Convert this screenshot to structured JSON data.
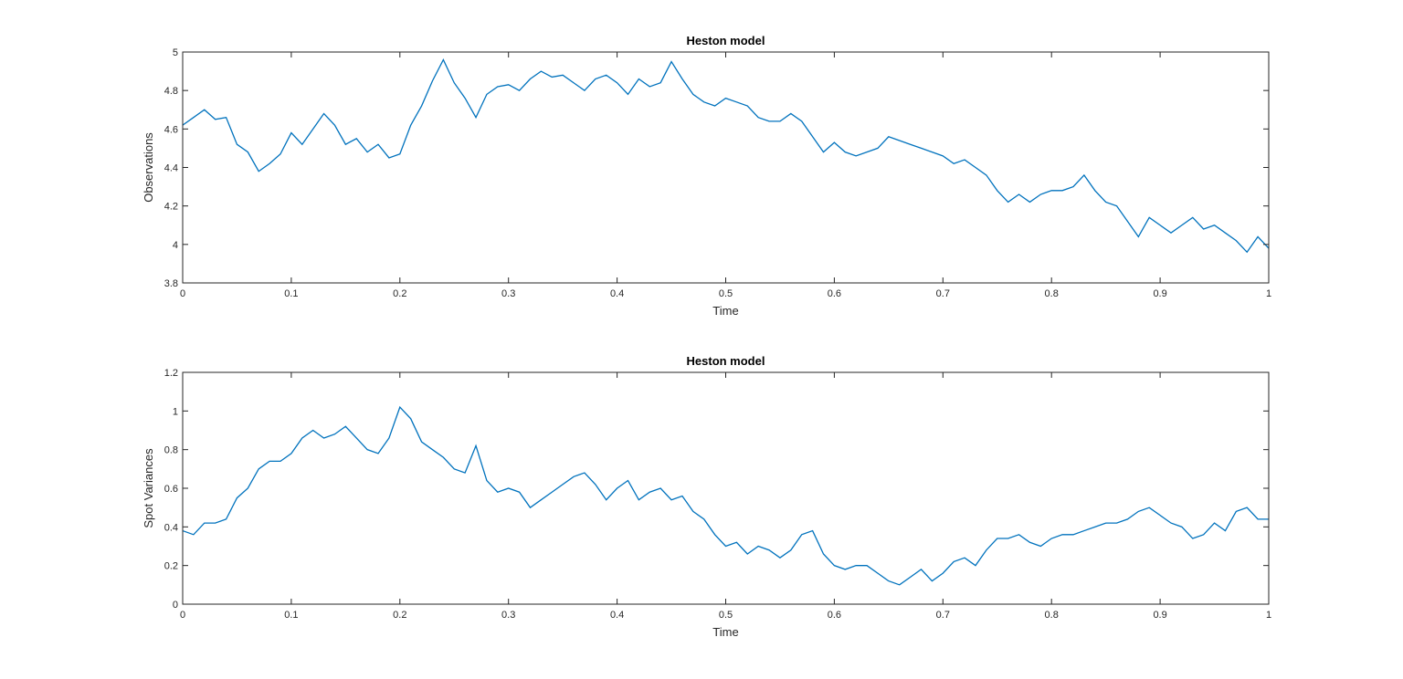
{
  "chart_data": [
    {
      "type": "line",
      "title": "Heston model",
      "xlabel": "Time",
      "ylabel": "Observations",
      "color": "#0072bd",
      "x": [
        0,
        0.01,
        0.02,
        0.03,
        0.04,
        0.05,
        0.06,
        0.07,
        0.08,
        0.09,
        0.1,
        0.11,
        0.12,
        0.13,
        0.14,
        0.15,
        0.16,
        0.17,
        0.18,
        0.19,
        0.2,
        0.21,
        0.22,
        0.23,
        0.24,
        0.25,
        0.26,
        0.27,
        0.28,
        0.29,
        0.3,
        0.31,
        0.32,
        0.33,
        0.34,
        0.35,
        0.36,
        0.37,
        0.38,
        0.39,
        0.4,
        0.41,
        0.42,
        0.43,
        0.44,
        0.45,
        0.46,
        0.47,
        0.48,
        0.49,
        0.5,
        0.51,
        0.52,
        0.53,
        0.54,
        0.55,
        0.56,
        0.57,
        0.58,
        0.59,
        0.6,
        0.61,
        0.62,
        0.63,
        0.64,
        0.65,
        0.66,
        0.67,
        0.68,
        0.69,
        0.7,
        0.71,
        0.72,
        0.73,
        0.74,
        0.75,
        0.76,
        0.77,
        0.78,
        0.79,
        0.8,
        0.81,
        0.82,
        0.83,
        0.84,
        0.85,
        0.86,
        0.87,
        0.88,
        0.89,
        0.9,
        0.91,
        0.92,
        0.93,
        0.94,
        0.95,
        0.96,
        0.97,
        0.98,
        0.99,
        1
      ],
      "values": [
        4.62,
        4.66,
        4.7,
        4.65,
        4.66,
        4.52,
        4.48,
        4.38,
        4.42,
        4.47,
        4.58,
        4.52,
        4.6,
        4.68,
        4.62,
        4.52,
        4.55,
        4.48,
        4.52,
        4.45,
        4.47,
        4.62,
        4.72,
        4.85,
        4.96,
        4.84,
        4.76,
        4.66,
        4.78,
        4.82,
        4.83,
        4.8,
        4.86,
        4.9,
        4.87,
        4.88,
        4.84,
        4.8,
        4.86,
        4.88,
        4.84,
        4.78,
        4.86,
        4.82,
        4.84,
        4.95,
        4.86,
        4.78,
        4.74,
        4.72,
        4.76,
        4.74,
        4.72,
        4.66,
        4.64,
        4.64,
        4.68,
        4.64,
        4.56,
        4.48,
        4.53,
        4.48,
        4.46,
        4.48,
        4.5,
        4.56,
        4.54,
        4.52,
        4.5,
        4.48,
        4.46,
        4.42,
        4.44,
        4.4,
        4.36,
        4.28,
        4.22,
        4.26,
        4.22,
        4.26,
        4.28,
        4.28,
        4.3,
        4.36,
        4.28,
        4.22,
        4.2,
        4.12,
        4.04,
        4.14,
        4.1,
        4.06,
        4.1,
        4.14,
        4.08,
        4.1,
        4.06,
        4.02,
        3.96,
        4.04,
        3.98
      ],
      "xlim": [
        0,
        1
      ],
      "xticks": [
        0,
        0.1,
        0.2,
        0.3,
        0.4,
        0.5,
        0.6,
        0.7,
        0.8,
        0.9,
        1
      ],
      "ylim": [
        3.8,
        5
      ],
      "yticks": [
        3.8,
        4,
        4.2,
        4.4,
        4.6,
        4.8,
        5
      ]
    },
    {
      "type": "line",
      "title": "Heston model",
      "xlabel": "Time",
      "ylabel": "Spot Variances",
      "color": "#0072bd",
      "x": [
        0,
        0.01,
        0.02,
        0.03,
        0.04,
        0.05,
        0.06,
        0.07,
        0.08,
        0.09,
        0.1,
        0.11,
        0.12,
        0.13,
        0.14,
        0.15,
        0.16,
        0.17,
        0.18,
        0.19,
        0.2,
        0.21,
        0.22,
        0.23,
        0.24,
        0.25,
        0.26,
        0.27,
        0.28,
        0.29,
        0.3,
        0.31,
        0.32,
        0.33,
        0.34,
        0.35,
        0.36,
        0.37,
        0.38,
        0.39,
        0.4,
        0.41,
        0.42,
        0.43,
        0.44,
        0.45,
        0.46,
        0.47,
        0.48,
        0.49,
        0.5,
        0.51,
        0.52,
        0.53,
        0.54,
        0.55,
        0.56,
        0.57,
        0.58,
        0.59,
        0.6,
        0.61,
        0.62,
        0.63,
        0.64,
        0.65,
        0.66,
        0.67,
        0.68,
        0.69,
        0.7,
        0.71,
        0.72,
        0.73,
        0.74,
        0.75,
        0.76,
        0.77,
        0.78,
        0.79,
        0.8,
        0.81,
        0.82,
        0.83,
        0.84,
        0.85,
        0.86,
        0.87,
        0.88,
        0.89,
        0.9,
        0.91,
        0.92,
        0.93,
        0.94,
        0.95,
        0.96,
        0.97,
        0.98,
        0.99,
        1
      ],
      "values": [
        0.38,
        0.36,
        0.42,
        0.42,
        0.44,
        0.55,
        0.6,
        0.7,
        0.74,
        0.74,
        0.78,
        0.86,
        0.9,
        0.86,
        0.88,
        0.92,
        0.86,
        0.8,
        0.78,
        0.86,
        1.02,
        0.96,
        0.84,
        0.8,
        0.76,
        0.7,
        0.68,
        0.82,
        0.64,
        0.58,
        0.6,
        0.58,
        0.5,
        0.54,
        0.58,
        0.62,
        0.66,
        0.68,
        0.62,
        0.54,
        0.6,
        0.64,
        0.54,
        0.58,
        0.6,
        0.54,
        0.56,
        0.48,
        0.44,
        0.36,
        0.3,
        0.32,
        0.26,
        0.3,
        0.28,
        0.24,
        0.28,
        0.36,
        0.38,
        0.26,
        0.2,
        0.18,
        0.2,
        0.2,
        0.16,
        0.12,
        0.1,
        0.14,
        0.18,
        0.12,
        0.16,
        0.22,
        0.24,
        0.2,
        0.28,
        0.34,
        0.34,
        0.36,
        0.32,
        0.3,
        0.34,
        0.36,
        0.36,
        0.38,
        0.4,
        0.42,
        0.42,
        0.44,
        0.48,
        0.5,
        0.46,
        0.42,
        0.4,
        0.34,
        0.36,
        0.42,
        0.38,
        0.48,
        0.5,
        0.44,
        0.44
      ],
      "xlim": [
        0,
        1
      ],
      "xticks": [
        0,
        0.1,
        0.2,
        0.3,
        0.4,
        0.5,
        0.6,
        0.7,
        0.8,
        0.9,
        1
      ],
      "ylim": [
        0,
        1.2
      ],
      "yticks": [
        0,
        0.2,
        0.4,
        0.6,
        0.8,
        1,
        1.2
      ]
    }
  ]
}
